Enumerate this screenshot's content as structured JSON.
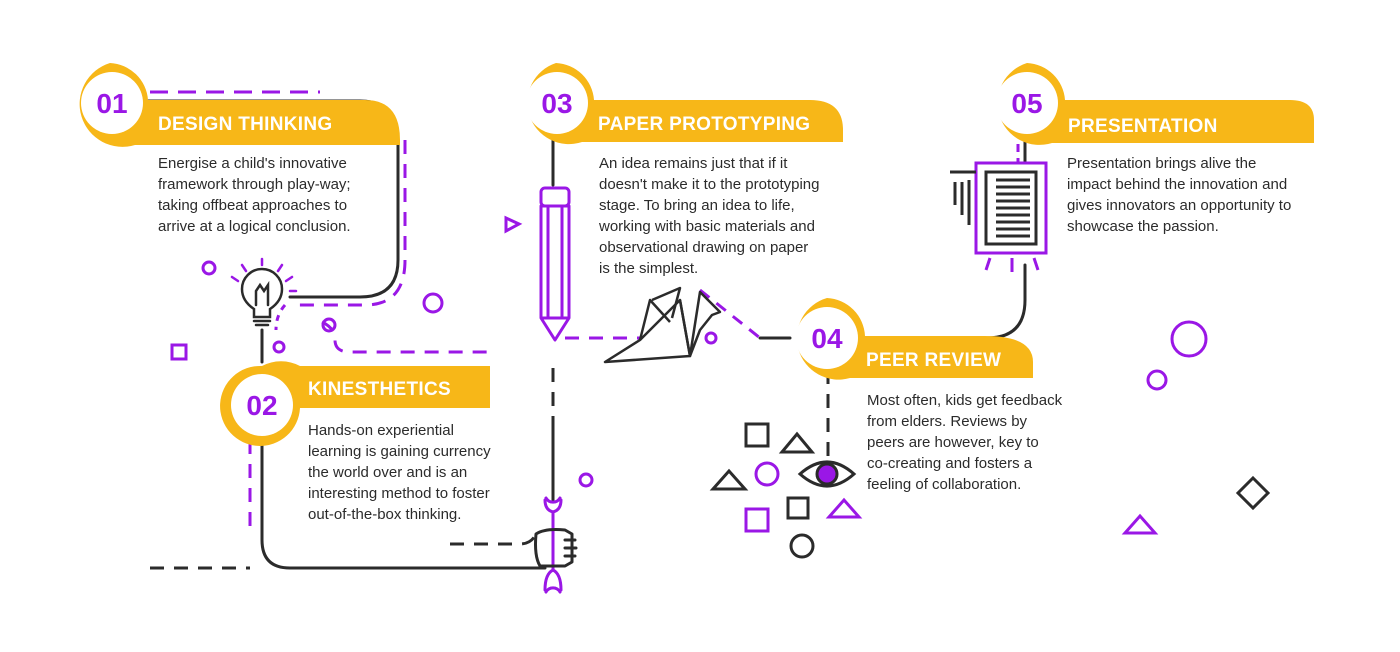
{
  "colors": {
    "accent": "#f7b718",
    "purple": "#9a17e6",
    "ink": "#2b2b2b"
  },
  "steps": [
    {
      "number": "01",
      "title": "DESIGN THINKING",
      "text": "Energise a child's innovative\nframework through play-way;\ntaking offbeat approaches to\narrive at a logical conclusion.",
      "icon": "lightbulb-icon"
    },
    {
      "number": "02",
      "title": "KINESTHETICS",
      "text": "Hands-on experiential\nlearning is gaining currency\nthe world over and is an\ninteresting method to foster\nout-of-the-box thinking.",
      "icon": "wrench-hand-icon"
    },
    {
      "number": "03",
      "title": "PAPER PROTOTYPING",
      "text": "An idea remains just that if it\ndoesn't make it to the prototyping\nstage. To bring an idea to life,\nworking with basic materials and\nobservational drawing on paper\nis the simplest.",
      "icon": "pencil-paper-crane-icon"
    },
    {
      "number": "04",
      "title": "PEER REVIEW",
      "text": "Most often, kids get feedback\nfrom elders. Reviews by\npeers are however, key to\nco-creating and fosters a\nfeeling of collaboration.",
      "icon": "eye-icon"
    },
    {
      "number": "05",
      "title": "PRESENTATION",
      "text": "Presentation brings alive the\nimpact behind the innovation and\ngives innovators an opportunity to\nshowcase the passion.",
      "icon": "presentation-board-icon"
    }
  ]
}
